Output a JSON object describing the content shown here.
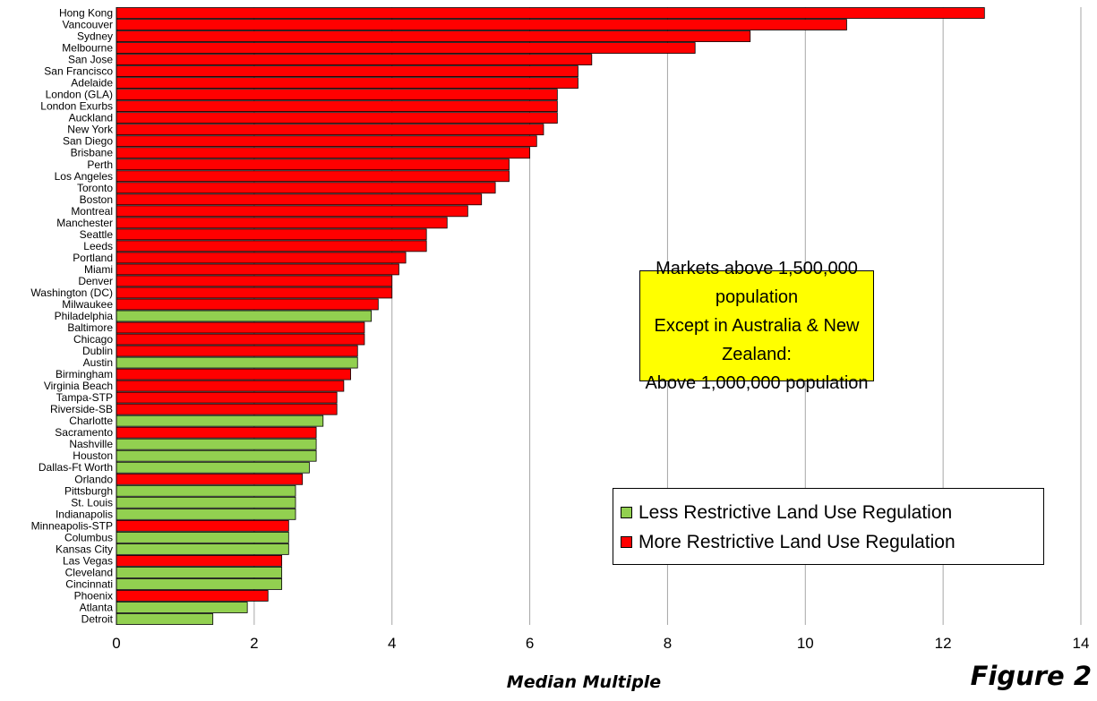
{
  "chart_data": {
    "type": "bar",
    "orientation": "horizontal",
    "categories": [
      "Hong Kong",
      "Vancouver",
      "Sydney",
      "Melbourne",
      "San Jose",
      "San Francisco",
      "Adelaide",
      "London (GLA)",
      "London Exurbs",
      "Auckland",
      "New York",
      "San Diego",
      "Brisbane",
      "Perth",
      "Los Angeles",
      "Toronto",
      "Boston",
      "Montreal",
      "Manchester",
      "Seattle",
      "Leeds",
      "Portland",
      "Miami",
      "Denver",
      "Washington (DC)",
      "Milwaukee",
      "Philadelphia",
      "Baltimore",
      "Chicago",
      "Dublin",
      "Austin",
      "Birmingham",
      "Virginia Beach",
      "Tampa-STP",
      "Riverside-SB",
      "Charlotte",
      "Sacramento",
      "Nashville",
      "Houston",
      "Dallas-Ft Worth",
      "Orlando",
      "Pittsburgh",
      "St. Louis",
      "Indianapolis",
      "Minneapolis-STP",
      "Columbus",
      "Kansas City",
      "Las Vegas",
      "Cleveland",
      "Cincinnati",
      "Phoenix",
      "Atlanta",
      "Detroit"
    ],
    "values": [
      12.6,
      10.6,
      9.2,
      8.4,
      6.9,
      6.7,
      6.7,
      6.4,
      6.4,
      6.4,
      6.2,
      6.1,
      6.0,
      5.7,
      5.7,
      5.5,
      5.3,
      5.1,
      4.8,
      4.5,
      4.5,
      4.2,
      4.1,
      4.0,
      4.0,
      3.8,
      3.7,
      3.6,
      3.6,
      3.5,
      3.5,
      3.4,
      3.3,
      3.2,
      3.2,
      3.0,
      2.9,
      2.9,
      2.9,
      2.8,
      2.7,
      2.6,
      2.6,
      2.6,
      2.5,
      2.5,
      2.5,
      2.4,
      2.4,
      2.4,
      2.2,
      1.9,
      1.4
    ],
    "regulation": [
      "more",
      "more",
      "more",
      "more",
      "more",
      "more",
      "more",
      "more",
      "more",
      "more",
      "more",
      "more",
      "more",
      "more",
      "more",
      "more",
      "more",
      "more",
      "more",
      "more",
      "more",
      "more",
      "more",
      "more",
      "more",
      "more",
      "less",
      "more",
      "more",
      "more",
      "less",
      "more",
      "more",
      "more",
      "more",
      "less",
      "more",
      "less",
      "less",
      "less",
      "more",
      "less",
      "less",
      "less",
      "more",
      "less",
      "less",
      "more",
      "less",
      "less",
      "more",
      "less",
      "less"
    ],
    "xlabel": "Median Multiple",
    "xlim": [
      0,
      14
    ],
    "xticks": [
      "0",
      "2",
      "4",
      "6",
      "8",
      "10",
      "12",
      "14"
    ],
    "grid": "vertical",
    "colors": {
      "less": "#92d050",
      "more": "#ff0000",
      "gridline": "#a6a6a6"
    },
    "legend": {
      "placement": "bottom-right",
      "items": [
        {
          "key": "less",
          "label": "Less Restrictive Land Use Regulation"
        },
        {
          "key": "more",
          "label": "More Restrictive Land Use Regulation"
        }
      ]
    }
  },
  "annotation": {
    "lines": [
      "Markets above 1,500,000 population",
      "Except in Australia & New Zealand:",
      "Above 1,000,000 population"
    ],
    "background": "#ffff00"
  },
  "figure_label": "Figure 2"
}
